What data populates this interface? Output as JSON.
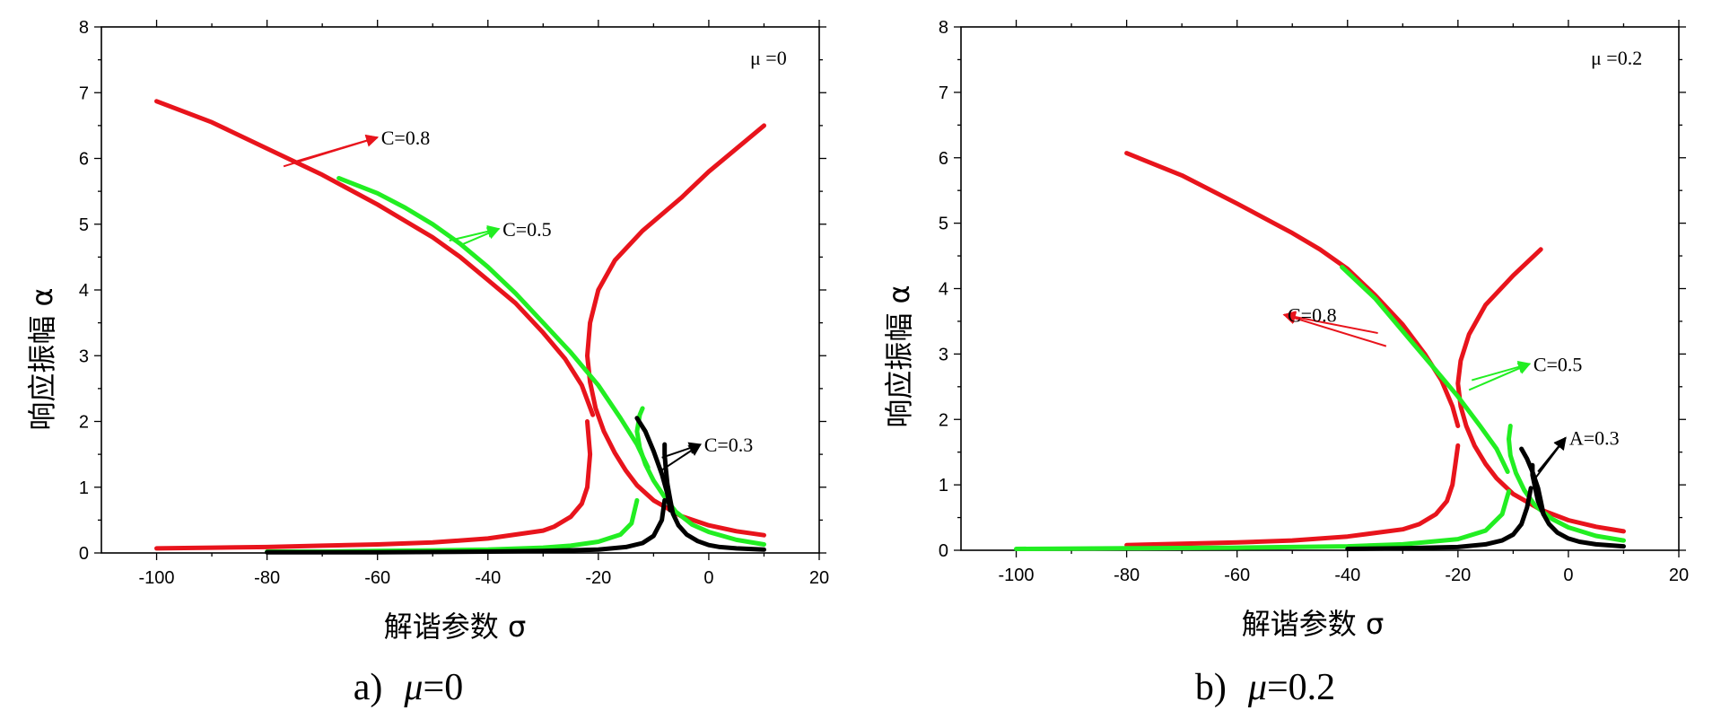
{
  "chart_data": [
    {
      "type": "line",
      "panel_label": "μ =0",
      "caption": {
        "letter": "a)",
        "symbol": "μ",
        "value": "=0"
      },
      "xlabel": "解谐参数 σ",
      "ylabel": "响应振幅 α",
      "xlim": [
        -110,
        20
      ],
      "ylim": [
        0,
        8
      ],
      "xticks": [
        -100,
        -80,
        -60,
        -40,
        -20,
        0,
        20
      ],
      "yticks": [
        0,
        1,
        2,
        3,
        4,
        5,
        6,
        7,
        8
      ],
      "grid": false,
      "colors": {
        "C=0.8": "#e8141c",
        "C=0.5": "#22ee22",
        "C=0.3": "#000000"
      },
      "series": [
        {
          "color": "#e8141c",
          "x": [
            10,
            5,
            0,
            -5,
            -10,
            -13,
            -15,
            -17,
            -19,
            -20.5,
            -21.5,
            -22,
            -21.5,
            -20,
            -17,
            -12,
            -5,
            0,
            10
          ],
          "y": [
            0.27,
            0.33,
            0.42,
            0.56,
            0.8,
            1.03,
            1.25,
            1.52,
            1.85,
            2.2,
            2.6,
            3.0,
            3.5,
            4.0,
            4.45,
            4.9,
            5.4,
            5.8,
            6.5
          ]
        },
        {
          "color": "#e8141c",
          "x": [
            -100,
            -90,
            -80,
            -70,
            -60,
            -50,
            -40,
            -30,
            -28,
            -25,
            -23,
            -22,
            -21.5,
            -22
          ],
          "y": [
            0.07,
            0.08,
            0.09,
            0.11,
            0.13,
            0.16,
            0.22,
            0.34,
            0.4,
            0.55,
            0.75,
            1.0,
            1.5,
            2.0
          ]
        },
        {
          "color": "#e8141c",
          "x": [
            -100,
            -90,
            -80,
            -70,
            -60,
            -55,
            -50,
            -45,
            -40,
            -35,
            -30,
            -26,
            -23,
            -21
          ],
          "y": [
            6.87,
            6.55,
            6.15,
            5.75,
            5.3,
            5.05,
            4.8,
            4.5,
            4.15,
            3.8,
            3.35,
            2.95,
            2.55,
            2.1
          ]
        },
        {
          "color": "#22ee22",
          "x": [
            10,
            5,
            0,
            -3,
            -6,
            -8,
            -10,
            -11.5,
            -12.5,
            -13,
            -12.5,
            -12
          ],
          "y": [
            0.13,
            0.2,
            0.32,
            0.43,
            0.63,
            0.85,
            1.1,
            1.35,
            1.6,
            1.85,
            2.1,
            2.2
          ]
        },
        {
          "color": "#22ee22",
          "x": [
            -80,
            -70,
            -60,
            -50,
            -40,
            -30,
            -25,
            -20,
            -16,
            -14,
            -13
          ],
          "y": [
            0.02,
            0.02,
            0.03,
            0.04,
            0.05,
            0.08,
            0.11,
            0.17,
            0.28,
            0.45,
            0.8
          ]
        },
        {
          "color": "#22ee22",
          "x": [
            -67,
            -60,
            -55,
            -50,
            -45,
            -40,
            -35,
            -30,
            -25,
            -20,
            -16,
            -13,
            -11
          ],
          "y": [
            5.7,
            5.47,
            5.25,
            5.0,
            4.7,
            4.35,
            3.95,
            3.5,
            3.05,
            2.55,
            2.05,
            1.65,
            1.3
          ]
        },
        {
          "color": "#000000",
          "x": [
            10,
            5,
            2,
            0,
            -2,
            -4,
            -5.5,
            -6.5,
            -7,
            -7.5,
            -7.8,
            -8,
            -8
          ],
          "y": [
            0.05,
            0.07,
            0.09,
            0.12,
            0.18,
            0.28,
            0.42,
            0.6,
            0.82,
            1.05,
            1.3,
            1.5,
            1.65
          ]
        },
        {
          "color": "#000000",
          "x": [
            -80,
            -60,
            -40,
            -30,
            -20,
            -15,
            -12,
            -10,
            -8.5,
            -8
          ],
          "y": [
            0.01,
            0.01,
            0.02,
            0.03,
            0.05,
            0.09,
            0.15,
            0.26,
            0.5,
            0.8
          ]
        },
        {
          "color": "#000000",
          "x": [
            -13,
            -11.5,
            -10,
            -8.5,
            -7.5,
            -7
          ],
          "y": [
            2.05,
            1.85,
            1.55,
            1.2,
            0.9,
            0.65
          ]
        }
      ],
      "annotations": [
        {
          "text": "C=0.8",
          "color": "#e8141c",
          "tip": [
            -60,
            6.32
          ],
          "tails": [
            [
              -75,
              5.95
            ],
            [
              -77,
              5.88
            ]
          ]
        },
        {
          "text": "C=0.5",
          "color": "#22ee22",
          "tip": [
            -38,
            4.93
          ],
          "tails": [
            [
              -47,
              4.75
            ],
            [
              -45,
              4.68
            ]
          ]
        },
        {
          "text": "C=0.3",
          "color": "#000000",
          "tip": [
            -1.5,
            1.65
          ],
          "tails": [
            [
              -8.5,
              1.45
            ],
            [
              -8.7,
              1.25
            ]
          ]
        }
      ]
    },
    {
      "type": "line",
      "panel_label": "μ =0.2",
      "caption": {
        "letter": "b)",
        "symbol": "μ",
        "value": "=0.2"
      },
      "xlabel": "解谐参数 σ",
      "ylabel": "响应振幅 α",
      "xlim": [
        -110,
        20
      ],
      "ylim": [
        0,
        8
      ],
      "xticks": [
        -100,
        -80,
        -60,
        -40,
        -20,
        0,
        20
      ],
      "yticks": [
        0,
        1,
        2,
        3,
        4,
        5,
        6,
        7,
        8
      ],
      "grid": false,
      "colors": {
        "C=0.8": "#e8141c",
        "C=0.5": "#22ee22",
        "A=0.3": "#000000"
      },
      "series": [
        {
          "color": "#e8141c",
          "x": [
            10,
            5,
            0,
            -5,
            -10,
            -13,
            -15,
            -17,
            -18.5,
            -19.5,
            -20,
            -19.5,
            -18,
            -15,
            -10,
            -5
          ],
          "y": [
            0.29,
            0.36,
            0.46,
            0.62,
            0.86,
            1.1,
            1.32,
            1.6,
            1.9,
            2.2,
            2.55,
            2.9,
            3.3,
            3.75,
            4.2,
            4.6
          ]
        },
        {
          "color": "#e8141c",
          "x": [
            -80,
            -70,
            -60,
            -50,
            -40,
            -30,
            -27,
            -24,
            -22,
            -21,
            -20.5,
            -20
          ],
          "y": [
            0.08,
            0.1,
            0.12,
            0.15,
            0.21,
            0.32,
            0.4,
            0.55,
            0.75,
            1.0,
            1.3,
            1.6
          ]
        },
        {
          "color": "#e8141c",
          "x": [
            -80,
            -70,
            -60,
            -50,
            -45,
            -40,
            -35,
            -30,
            -26,
            -23,
            -21,
            -20
          ],
          "y": [
            6.07,
            5.73,
            5.3,
            4.85,
            4.6,
            4.3,
            3.9,
            3.45,
            3.0,
            2.6,
            2.2,
            1.9
          ]
        },
        {
          "color": "#22ee22",
          "x": [
            10,
            5,
            0,
            -3,
            -6,
            -8,
            -9.5,
            -10.5,
            -10.8,
            -10.5
          ],
          "y": [
            0.15,
            0.22,
            0.35,
            0.48,
            0.68,
            0.92,
            1.18,
            1.45,
            1.7,
            1.9
          ]
        },
        {
          "color": "#22ee22",
          "x": [
            -100,
            -80,
            -60,
            -40,
            -30,
            -20,
            -15,
            -12,
            -10.8
          ],
          "y": [
            0.02,
            0.03,
            0.04,
            0.06,
            0.09,
            0.17,
            0.3,
            0.55,
            0.9
          ]
        },
        {
          "color": "#22ee22",
          "x": [
            -41,
            -35,
            -30,
            -25,
            -20,
            -16,
            -13,
            -11
          ],
          "y": [
            4.33,
            3.85,
            3.35,
            2.85,
            2.35,
            1.9,
            1.55,
            1.2
          ]
        },
        {
          "color": "#000000",
          "x": [
            10,
            5,
            2,
            0,
            -2,
            -3.5,
            -4.5,
            -5.5,
            -6,
            -6.5,
            -6.5
          ],
          "y": [
            0.06,
            0.09,
            0.13,
            0.18,
            0.27,
            0.4,
            0.55,
            0.75,
            0.95,
            1.15,
            1.3
          ]
        },
        {
          "color": "#000000",
          "x": [
            -40,
            -30,
            -20,
            -15,
            -12,
            -10,
            -8.5,
            -7.5,
            -6.8
          ],
          "y": [
            0.02,
            0.03,
            0.05,
            0.09,
            0.15,
            0.24,
            0.4,
            0.65,
            0.95
          ]
        },
        {
          "color": "#000000",
          "x": [
            -8.5,
            -7.5,
            -6.5,
            -5.5,
            -5,
            -4.5
          ],
          "y": [
            1.55,
            1.4,
            1.2,
            0.95,
            0.75,
            0.55
          ]
        }
      ],
      "annotations": [
        {
          "text": "C=0.8",
          "color": "#e8141c",
          "tip": [
            -51.5,
            3.6
          ],
          "tails": [
            [
              -34.5,
              3.32
            ],
            [
              -33,
              3.12
            ]
          ]
        },
        {
          "text": "C=0.5",
          "color": "#22ee22",
          "tip": [
            -7,
            2.85
          ],
          "tails": [
            [
              -17.5,
              2.6
            ],
            [
              -18,
              2.45
            ]
          ]
        },
        {
          "text": "A=0.3",
          "color": "#000000",
          "tip": [
            -0.5,
            1.72
          ],
          "tails": [
            [
              -5.5,
              1.2
            ],
            [
              -6,
              1.1
            ]
          ]
        }
      ]
    }
  ]
}
